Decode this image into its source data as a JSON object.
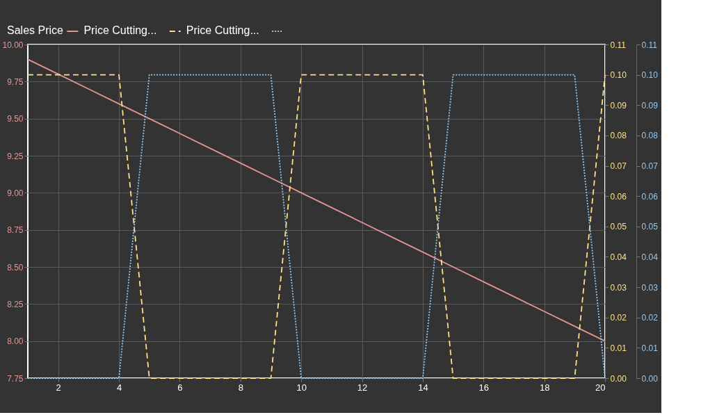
{
  "chart_data": {
    "type": "line",
    "x": [
      1,
      2,
      3,
      4,
      5,
      6,
      7,
      8,
      9,
      10,
      11,
      12,
      13,
      14,
      15,
      16,
      17,
      18,
      19,
      20
    ],
    "series": [
      {
        "name": "Sales Price",
        "color": "#e59494",
        "axis": "y",
        "line_style": "solid",
        "values": [
          9.9,
          9.8,
          9.7,
          9.6,
          9.5,
          9.4,
          9.3,
          9.2,
          9.1,
          9.0,
          8.9,
          8.8,
          8.7,
          8.6,
          8.5,
          8.4,
          8.3,
          8.2,
          8.1,
          8.0
        ]
      },
      {
        "name": "Price Cutting...",
        "color": "#ffe084",
        "axis": "y2",
        "line_style": "dashed",
        "values": [
          0.1,
          0.1,
          0.1,
          0.1,
          0,
          0,
          0,
          0,
          0,
          0.1,
          0.1,
          0.1,
          0.1,
          0.1,
          0,
          0,
          0,
          0,
          0,
          0.1
        ]
      },
      {
        "name": "Price Cutting...",
        "color": "#94c8f0",
        "axis": "y3",
        "line_style": "dotted",
        "values": [
          0,
          0,
          0,
          0,
          0.1,
          0.1,
          0.1,
          0.1,
          0.1,
          0,
          0,
          0,
          0,
          0,
          0.1,
          0.1,
          0.1,
          0.1,
          0.1,
          0
        ]
      }
    ],
    "xlim": [
      1,
      20
    ],
    "xticks": [
      2,
      4,
      6,
      8,
      10,
      12,
      14,
      16,
      18,
      20
    ],
    "ylim": [
      7.75,
      10
    ],
    "yticks": [
      7.75,
      {
        "value": 8,
        "label": "8.00"
      },
      8.25,
      {
        "value": 8.5,
        "label": "8.50"
      },
      8.75,
      {
        "value": 9,
        "label": "9.00"
      },
      9.25,
      {
        "value": 9.5,
        "label": "9.50"
      },
      9.75,
      {
        "value": 10,
        "label": "10.00"
      }
    ],
    "y2lim": [
      0,
      0.11
    ],
    "y2ticks": [
      {
        "value": 0,
        "label": "0.00"
      },
      0.01,
      0.02,
      0.03,
      0.04,
      0.05,
      0.06,
      0.07,
      0.08,
      0.09,
      {
        "value": 0.1,
        "label": "0.10"
      },
      0.11
    ],
    "y3lim": [
      0,
      0.11
    ],
    "y3ticks": [
      {
        "value": 0,
        "label": "0.00"
      },
      0.01,
      0.02,
      0.03,
      0.04,
      0.05,
      0.06,
      0.07,
      0.08,
      0.09,
      {
        "value": 0.1,
        "label": "0.10"
      },
      0.11
    ],
    "grid": true,
    "legend": "top left",
    "marker": "none"
  }
}
